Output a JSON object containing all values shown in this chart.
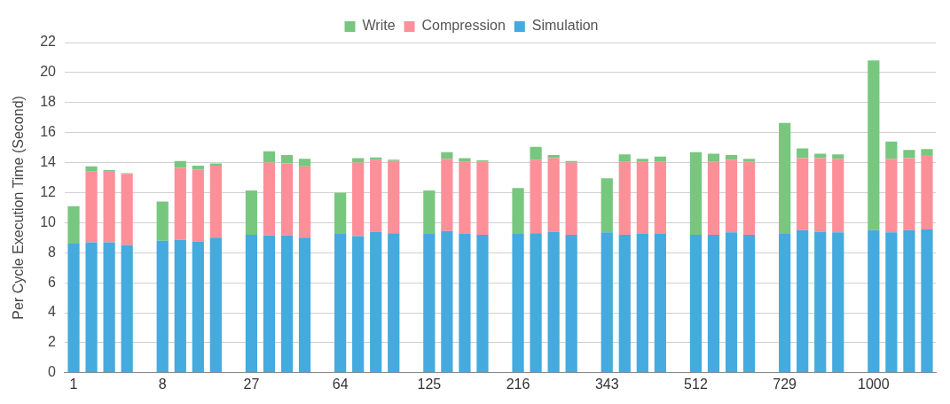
{
  "chart_data": {
    "type": "bar",
    "stacked": true,
    "ylabel": "Per Cycle Execution Time (Second)",
    "categories": [
      "1",
      null,
      null,
      null,
      null,
      "8",
      null,
      null,
      null,
      null,
      "27",
      null,
      null,
      null,
      null,
      "64",
      null,
      null,
      null,
      null,
      "125",
      null,
      null,
      null,
      null,
      "216",
      null,
      null,
      null,
      null,
      "343",
      null,
      null,
      null,
      null,
      "512",
      null,
      null,
      null,
      null,
      "729",
      null,
      null,
      null,
      null,
      "1000",
      null,
      null,
      null
    ],
    "series": [
      {
        "name": "Simulation",
        "color": "#45aade",
        "values": [
          8.6,
          8.7,
          8.7,
          8.5,
          null,
          8.8,
          8.85,
          8.75,
          9.0,
          null,
          9.2,
          9.15,
          9.15,
          9.0,
          null,
          9.3,
          9.1,
          9.4,
          9.3,
          null,
          9.3,
          9.45,
          9.25,
          9.2,
          null,
          9.3,
          9.3,
          9.4,
          9.2,
          null,
          9.35,
          9.2,
          9.25,
          9.25,
          null,
          9.2,
          9.2,
          9.35,
          9.2,
          null,
          9.25,
          9.5,
          9.4,
          9.35,
          null,
          9.5,
          9.35,
          9.5,
          9.55
        ]
      },
      {
        "name": "Compression",
        "color": "#fd8f99",
        "values": [
          0,
          4.7,
          4.75,
          4.75,
          null,
          0,
          4.8,
          4.8,
          4.8,
          null,
          0,
          4.85,
          4.8,
          4.75,
          null,
          0,
          4.9,
          4.8,
          4.8,
          null,
          0,
          4.8,
          4.8,
          4.85,
          null,
          0,
          4.9,
          4.9,
          4.8,
          null,
          0,
          4.85,
          4.8,
          4.8,
          null,
          0,
          4.85,
          4.85,
          4.85,
          null,
          0,
          4.8,
          4.9,
          4.9,
          null,
          0,
          4.9,
          4.8,
          4.95
        ]
      },
      {
        "name": "Write",
        "color": "#77c77f",
        "values": [
          2.5,
          0.35,
          0.05,
          0.05,
          null,
          2.6,
          0.45,
          0.25,
          0.15,
          null,
          2.95,
          0.75,
          0.55,
          0.5,
          null,
          2.7,
          0.3,
          0.15,
          0.1,
          null,
          2.85,
          0.45,
          0.25,
          0.1,
          null,
          3.0,
          0.85,
          0.2,
          0.1,
          null,
          3.6,
          0.5,
          0.2,
          0.35,
          null,
          5.5,
          0.55,
          0.3,
          0.2,
          null,
          7.4,
          0.65,
          0.3,
          0.3,
          null,
          11.3,
          1.15,
          0.55,
          0.4
        ]
      }
    ],
    "ylim": [
      0,
      22
    ],
    "yticks": [
      0,
      2,
      4,
      6,
      8,
      10,
      12,
      14,
      16,
      18,
      20,
      22
    ],
    "grid": "y",
    "legend": "top"
  }
}
